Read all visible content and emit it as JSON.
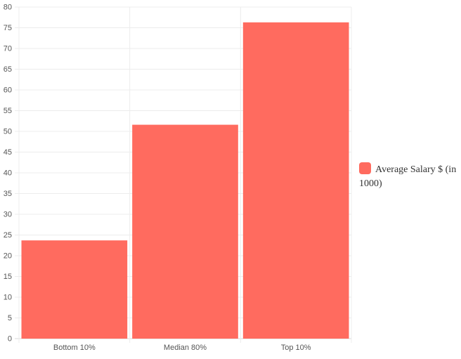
{
  "chart_data": {
    "type": "bar",
    "categories": [
      "Bottom  10%",
      "Median 80%",
      "Top 10%"
    ],
    "series": [
      {
        "name": "Average Salary $ (in 1000)",
        "values": [
          23.7,
          51.6,
          76.3
        ],
        "color": "#ff6b5f"
      }
    ],
    "ylim": [
      0,
      80
    ],
    "yticks": [
      0,
      5,
      10,
      15,
      20,
      25,
      30,
      35,
      40,
      45,
      50,
      55,
      60,
      65,
      70,
      75,
      80
    ],
    "grid": true,
    "legend_position": "right",
    "title": "",
    "xlabel": "",
    "ylabel": ""
  }
}
